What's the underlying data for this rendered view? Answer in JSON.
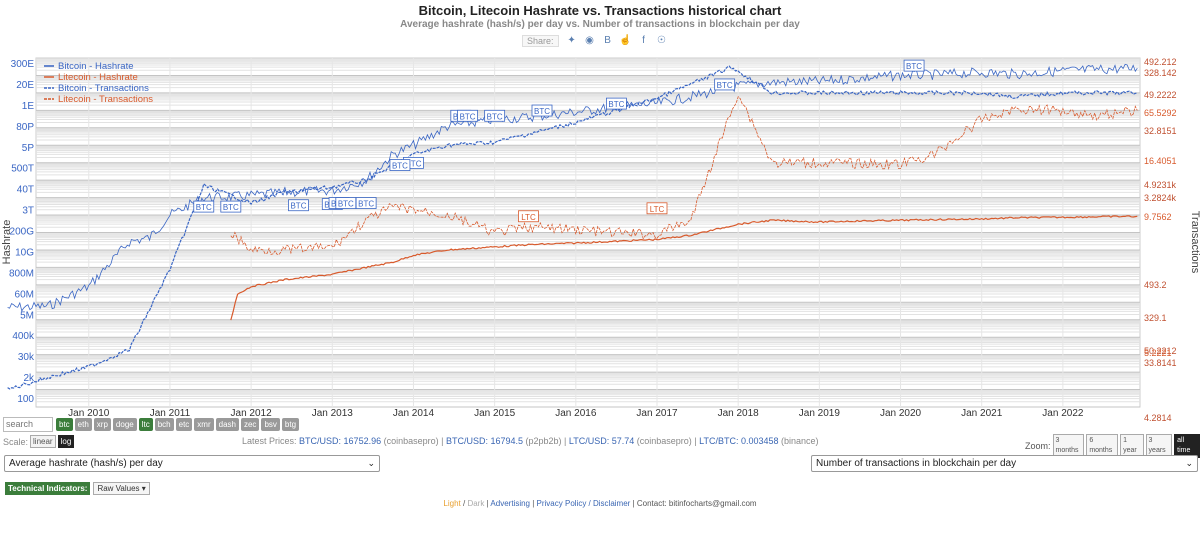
{
  "chart_data": {
    "type": "line",
    "title": "Bitcoin, Litecoin Hashrate vs. Transactions historical chart",
    "subtitle": "Average hashrate (hash/s) per day vs. Number of transactions in blockchain per day",
    "ylabel": "Hashrate",
    "y2label": "Transactions",
    "yscale": "log",
    "legend_placement": "top-left",
    "grid": true,
    "x_ticks": [
      "Jan 2010",
      "Jan 2011",
      "Jan 2012",
      "Jan 2013",
      "Jan 2014",
      "Jan 2015",
      "Jan 2016",
      "Jan 2017",
      "Jan 2018",
      "Jan 2019",
      "Jan 2020",
      "Jan 2021",
      "Jan 2022"
    ],
    "y_ticks": [
      "300E",
      "20E",
      "1E",
      "80P",
      "5P",
      "500T",
      "40T",
      "3T",
      "200G",
      "10G",
      "800M",
      "60M",
      "5M",
      "400k",
      "30k",
      "2k",
      "100"
    ],
    "y2_ticks_btc": [
      "492.212",
      "328.142",
      "49.2222",
      "32.8151",
      "4.9231k",
      "3.2824k",
      "493.2",
      "329.1",
      "50.2212",
      "33.8141",
      "4.2814"
    ],
    "y2_ticks_ltc": [
      "65.5292",
      "16.4051",
      "9.7562",
      "5.2221"
    ],
    "series": [
      {
        "name": "Bitcoin - Hashrate",
        "color": "#3a66c4",
        "dash": "solid",
        "x": [
          "2009-01",
          "2009-07",
          "2010-01",
          "2010-07",
          "2010-10",
          "2011-01",
          "2011-06",
          "2011-10",
          "2012-01",
          "2012-06",
          "2013-01",
          "2013-06",
          "2013-10",
          "2014-01",
          "2014-06",
          "2015-01",
          "2015-06",
          "2016-01",
          "2016-06",
          "2017-01",
          "2017-06",
          "2018-01",
          "2018-06",
          "2019-01",
          "2019-06",
          "2020-01",
          "2020-06",
          "2021-01",
          "2021-06",
          "2022-01",
          "2022-06",
          "2022-12"
        ],
        "y": [
          "5e6",
          "6e6",
          "8e7",
          "3e10",
          "5e10",
          "1e12",
          "1e13",
          "1.1e13",
          "1.3e13",
          "2e13",
          "2.5e13",
          "1e14",
          "3e15",
          "1e16",
          "1.2e17",
          "3e17",
          "4e17",
          "8e17",
          "1.4e18",
          "2.5e18",
          "6e18",
          "2.5e19",
          "4e19",
          "4.5e19",
          "6.5e19",
          "1e20",
          "1.1e20",
          "1.5e20",
          "1.2e20",
          "1.8e20",
          "2.2e20",
          "2.6e20"
        ]
      },
      {
        "name": "Litecoin - Hashrate",
        "color": "#d85a2c",
        "dash": "solid",
        "x": [
          "2011-10",
          "2011-11",
          "2012-01",
          "2012-06",
          "2013-01",
          "2013-06",
          "2013-10",
          "2014-01",
          "2014-06",
          "2015-01",
          "2015-06",
          "2016-01",
          "2016-06",
          "2017-01",
          "2017-06",
          "2018-01",
          "2018-06",
          "2019-01",
          "2019-06",
          "2020-01",
          "2020-06",
          "2021-01",
          "2021-06",
          "2022-01",
          "2022-06",
          "2022-12"
        ],
        "y": [
          "1e6",
          "3e7",
          "8e7",
          "2e8",
          "4e8",
          "1e9",
          "2e9",
          "5e9",
          "1e10",
          "1.5e10",
          "2e10",
          "2.5e10",
          "3e10",
          "4e10",
          "7e10",
          "3e11",
          "5e11",
          "4e11",
          "4.5e11",
          "5e11",
          "5.5e11",
          "6e11",
          "7e11",
          "7.5e11",
          "8e11",
          "8.5e11"
        ]
      },
      {
        "name": "Bitcoin - Transactions",
        "color": "#3a66c4",
        "dash": "dashed",
        "x": [
          "2009-01",
          "2009-07",
          "2010-01",
          "2010-07",
          "2011-01",
          "2011-06",
          "2012-01",
          "2012-06",
          "2013-01",
          "2013-06",
          "2014-01",
          "2014-06",
          "2015-01",
          "2016-01",
          "2017-01",
          "2017-12",
          "2018-06",
          "2019-01",
          "2020-01",
          "2021-01",
          "2021-06",
          "2022-01",
          "2022-12"
        ],
        "y": [
          100,
          500,
          2000,
          20000,
          800000000.0,
          50000000000000.0,
          5000000000000.0,
          20000000000000.0,
          40000000000000.0,
          100000000000000.0,
          3000000000000000.0,
          1e+16,
          1.5e+16,
          2e+17,
          5e+18,
          3e+20,
          1e+19,
          1e+19,
          1e+19,
          1e+19,
          6e+18,
          1e+19,
          1e+19
        ]
      },
      {
        "name": "Litecoin - Transactions",
        "color": "#d85a2c",
        "dash": "dashed",
        "x": [
          "2011-10",
          "2012-01",
          "2012-06",
          "2013-01",
          "2013-06",
          "2013-10",
          "2014-01",
          "2014-06",
          "2015-01",
          "2015-06",
          "2016-01",
          "2016-06",
          "2017-01",
          "2017-06",
          "2018-01",
          "2018-06",
          "2019-01",
          "2020-01",
          "2020-06",
          "2021-01",
          "2021-06",
          "2022-01",
          "2022-06",
          "2022-12"
        ],
        "y": [
          100000000000.0,
          10000000000.0,
          10000000000.0,
          15000000000.0,
          500000000000.0,
          3000000000000.0,
          2000000000000.0,
          1000000000000.0,
          100000000000.0,
          200000000000.0,
          150000000000.0,
          100000000000.0,
          80000000000.0,
          500000000000.0,
          1e+19,
          1000000000000000.0,
          1000000000000000.0,
          800000000000000.0,
          3000000000000000.0,
          3e+17,
          1.2e+18,
          1e+18,
          5e+17,
          1e+18
        ]
      }
    ],
    "annotations": [
      {
        "text": "BTC",
        "x": "2011-06",
        "y": "2.5e12"
      },
      {
        "text": "BTC",
        "x": "2011-10",
        "y": "2.5e12"
      },
      {
        "text": "BTC",
        "x": "2012-08",
        "y": "3e12"
      },
      {
        "text": "BTC",
        "x": "2013-01",
        "y": "3.5e12"
      },
      {
        "text": "BTC",
        "x": "2013-02",
        "y": "4e12"
      },
      {
        "text": "BTC",
        "x": "2013-03",
        "y": "4e12"
      },
      {
        "text": "BTC",
        "x": "2013-06",
        "y": "4e12"
      },
      {
        "text": "BTC",
        "x": "2014-01",
        "y": "8e14"
      },
      {
        "text": "BTC",
        "x": "2013-11",
        "y": "6e14"
      },
      {
        "text": "BTC",
        "x": "2014-08",
        "y": "4e17"
      },
      {
        "text": "BTC",
        "x": "2014-09",
        "y": "4e17"
      },
      {
        "text": "BTC",
        "x": "2015-01",
        "y": "4e17"
      },
      {
        "text": "BTC",
        "x": "2015-08",
        "y": "8e17"
      },
      {
        "text": "BTC",
        "x": "2016-07",
        "y": "2e18"
      },
      {
        "text": "BTC",
        "x": "2017-11",
        "y": "2.5e19"
      },
      {
        "text": "BTC",
        "x": "2020-03",
        "y": "3e20"
      },
      {
        "text": "LTC",
        "x": "2015-06",
        "y": "7e11"
      },
      {
        "text": "LTC",
        "x": "2017-01",
        "y": "2e12"
      }
    ]
  },
  "share": {
    "label": "Share:",
    "icons": [
      "twitter-icon",
      "reddit-icon",
      "vk-icon",
      "like-icon",
      "facebook-icon",
      "weibo-icon"
    ]
  },
  "coins": [
    "btc",
    "eth",
    "xrp",
    "doge",
    "ltc",
    "bch",
    "etc",
    "xmr",
    "dash",
    "zec",
    "bsv",
    "btg"
  ],
  "search_placeholder": "search",
  "scale": {
    "label": "Scale:",
    "linear": "linear",
    "log": "log"
  },
  "prices": {
    "label": "Latest Prices:",
    "btc_usd": "BTC/USD: 16752.96",
    "src1": " (coinbasepro) | ",
    "btc_usd2": "BTC/USD: 16794.5",
    "src2": " (p2pb2b) | ",
    "ltc_usd": "LTC/USD: 57.74",
    "src3": " (coinbasepro) | ",
    "ltc_btc": "LTC/BTC: 0.003458",
    "src4": " (binance)"
  },
  "zoom": {
    "label": "Zoom:",
    "options": [
      "3 months",
      "6 months",
      "1 year",
      "3 years",
      "all time"
    ]
  },
  "select_left": "Average hashrate (hash/s) per day",
  "select_right": "Number of transactions in blockchain per day",
  "technical": {
    "label": "Technical Indicators:",
    "raw": "Raw Values"
  },
  "footer": {
    "light": "Light",
    "sep1": " / ",
    "dark": "Dark",
    "sep2": " | ",
    "advertising": "Advertising",
    "sep3": " | ",
    "privacy": "Privacy Policy / Disclaimer",
    "sep4": " | ",
    "contact": "Contact: bitinfocharts@gmail.com"
  }
}
